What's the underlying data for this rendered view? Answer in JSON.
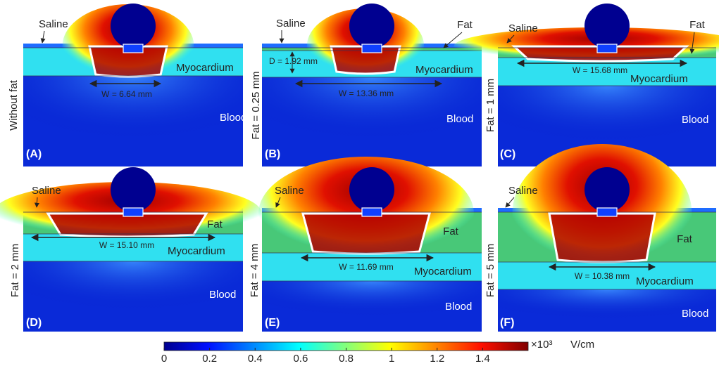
{
  "panels": [
    {
      "label": "(A)",
      "side": "Without fat",
      "saline": "Saline",
      "myocardium": "Myocardium",
      "blood": "Blood",
      "width": "W = 6.64 mm"
    },
    {
      "label": "(B)",
      "side": "Fat = 0.25 mm",
      "saline": "Saline",
      "fat": "Fat",
      "depth": "D = 1.92 mm",
      "myocardium": "Myocardium",
      "blood": "Blood",
      "width": "W = 13.36 mm"
    },
    {
      "label": "(C)",
      "side": "Fat = 1 mm",
      "saline": "Saline",
      "fat": "Fat",
      "myocardium": "Myocardium",
      "blood": "Blood",
      "width": "W = 15.68 mm"
    },
    {
      "label": "(D)",
      "side": "Fat = 2 mm",
      "saline": "Saline",
      "fat": "Fat",
      "myocardium": "Myocardium",
      "blood": "Blood",
      "width": "W = 15.10 mm"
    },
    {
      "label": "(E)",
      "side": "Fat = 4 mm",
      "saline": "Saline",
      "fat": "Fat",
      "myocardium": "Myocardium",
      "blood": "Blood",
      "width": "W = 11.69 mm"
    },
    {
      "label": "(F)",
      "side": "Fat = 5 mm",
      "saline": "Saline",
      "fat": "Fat",
      "myocardium": "Myocardium",
      "blood": "Blood",
      "width": "W = 10.38 mm"
    }
  ],
  "colorbar": {
    "ticks": [
      "0",
      "0.2",
      "0.4",
      "0.6",
      "0.8",
      "1",
      "1.2",
      "1.4"
    ],
    "multiplier": "×10³",
    "unit": "V/cm"
  }
}
